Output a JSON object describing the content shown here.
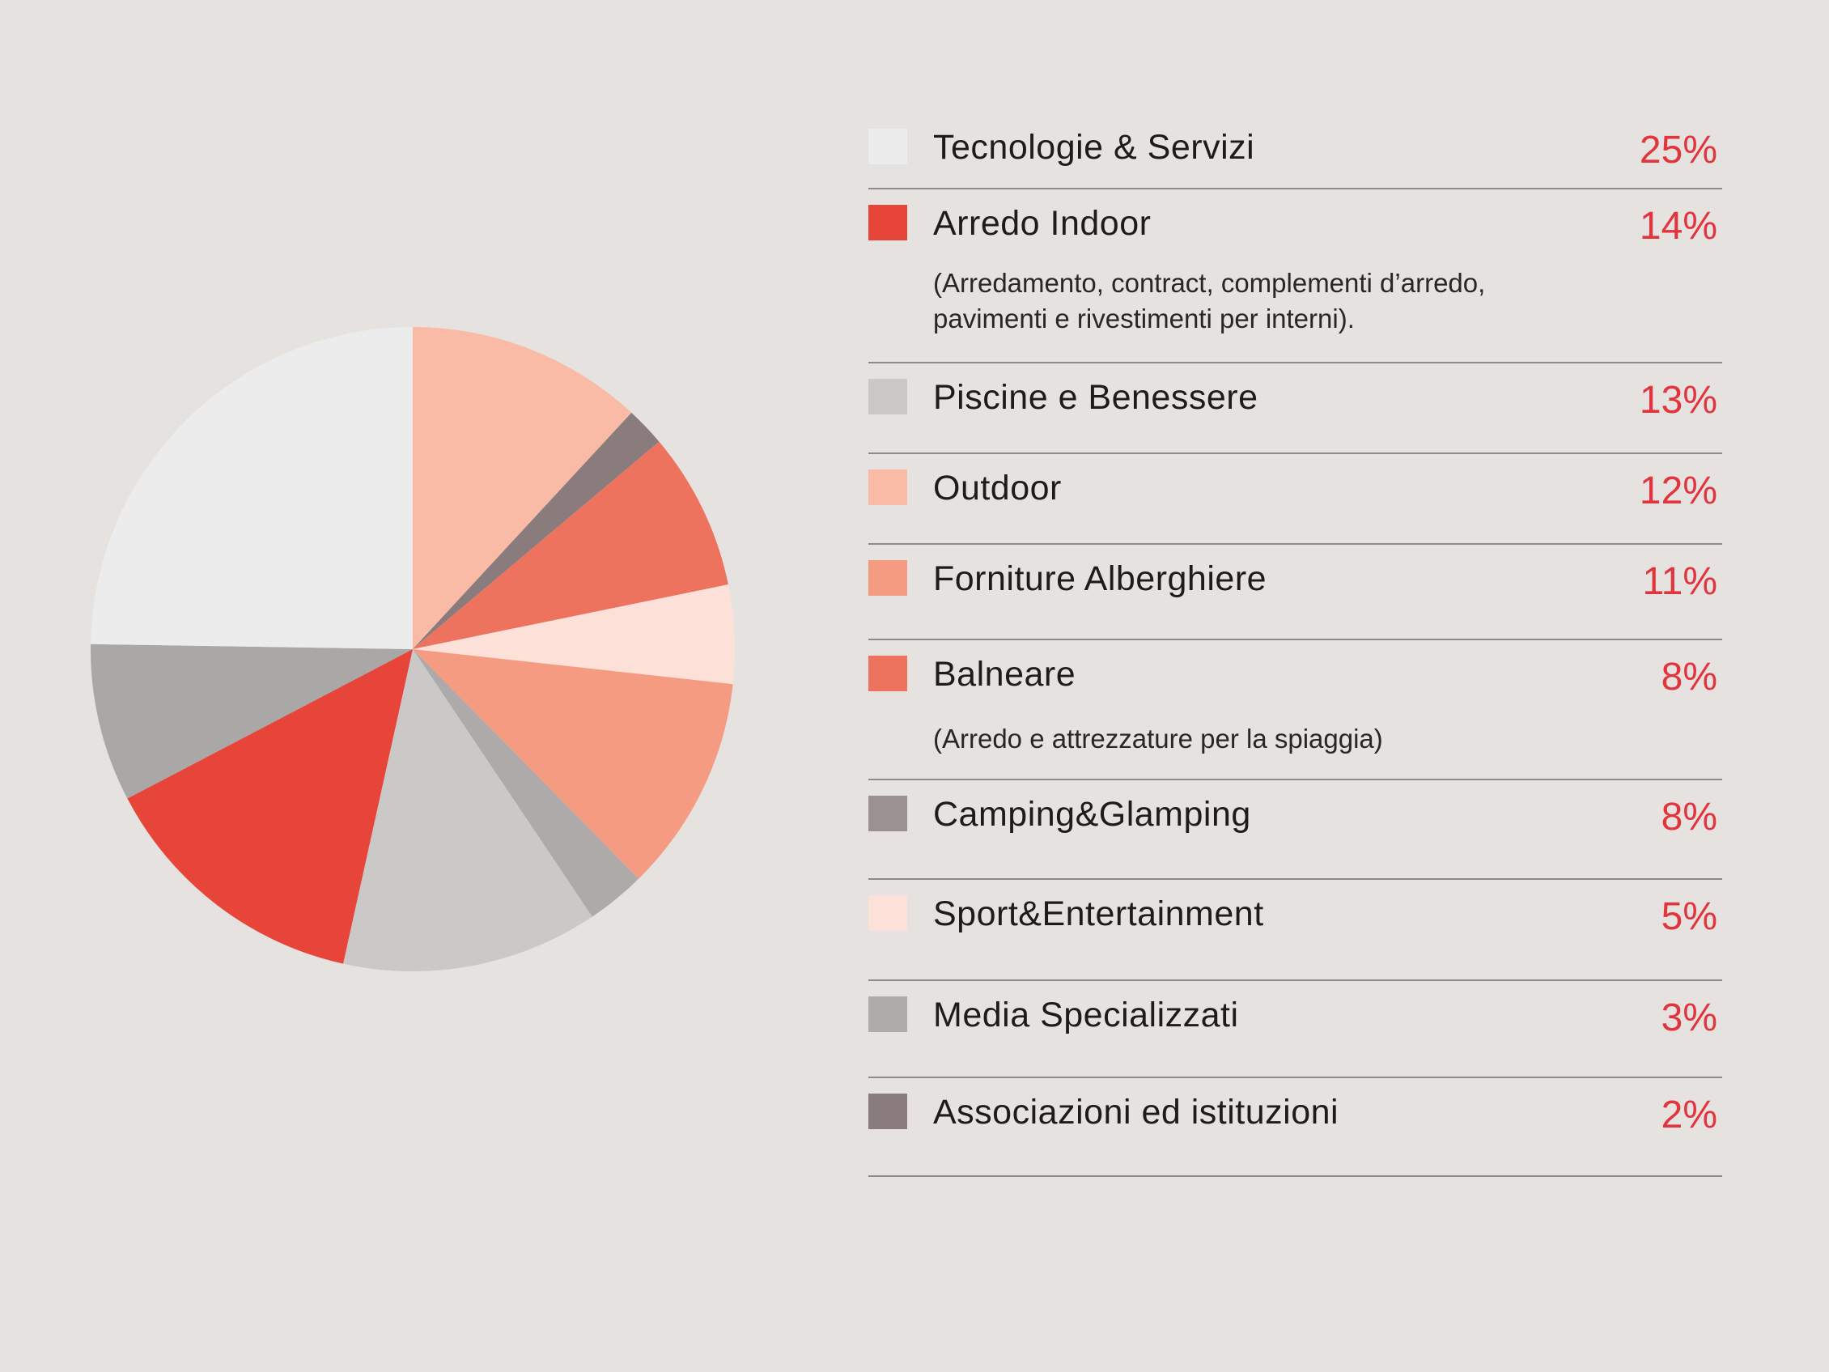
{
  "chart_data": {
    "type": "pie",
    "start": "12 o'clock, clockwise",
    "slices": [
      {
        "name": "Outdoor",
        "value": 12,
        "color": "#f9bba6"
      },
      {
        "name": "Associazioni ed istituzioni",
        "value": 2,
        "color": "#8a7c7d"
      },
      {
        "name": "Balneare",
        "value": 8,
        "color": "#ee735e"
      },
      {
        "name": "Sport&Entertainment",
        "value": 5,
        "color": "#fde1d8"
      },
      {
        "name": "Forniture Alberghiere",
        "value": 11,
        "color": "#f49b82"
      },
      {
        "name": "Media Specializzati",
        "value": 3,
        "color": "#aeaaa9"
      },
      {
        "name": "Piscine e Benessere",
        "value": 13,
        "color": "#cbc8c8"
      },
      {
        "name": "Arredo Indoor",
        "value": 14,
        "color": "#e8453a"
      },
      {
        "name": "Camping&Glamping",
        "value": 8,
        "color": "#a9a8a6"
      },
      {
        "name": "Tecnologie & Servizi",
        "value": 25,
        "color": "#ececec"
      }
    ]
  },
  "legend": {
    "items": [
      {
        "label": "Tecnologie & Servizi",
        "value": "25%",
        "color": "#ececec"
      },
      {
        "label": "Arredo Indoor",
        "value": "14%",
        "color": "#e8453a",
        "note": "(Arredamento, contract, complementi d’arredo,\npavimenti e rivestimenti per interni)."
      },
      {
        "label": "Piscine e Benessere",
        "value": "13%",
        "color": "#cbc8c8"
      },
      {
        "label": "Outdoor",
        "value": "12%",
        "color": "#f9bba6"
      },
      {
        "label": "Forniture Alberghiere",
        "value": "11%",
        "color": "#f49b82"
      },
      {
        "label": "Balneare",
        "value": "8%",
        "color": "#ee735e",
        "note": "(Arredo e attrezzature per la spiaggia)"
      },
      {
        "label": "Camping&Glamping",
        "value": "8%",
        "color": "#9a9292"
      },
      {
        "label": "Sport&Entertainment",
        "value": "5%",
        "color": "#fde1d8"
      },
      {
        "label": "Media Specializzati",
        "value": "3%",
        "color": "#afabaa"
      },
      {
        "label": "Associazioni ed istituzioni",
        "value": "2%",
        "color": "#8a7c7d"
      }
    ]
  }
}
